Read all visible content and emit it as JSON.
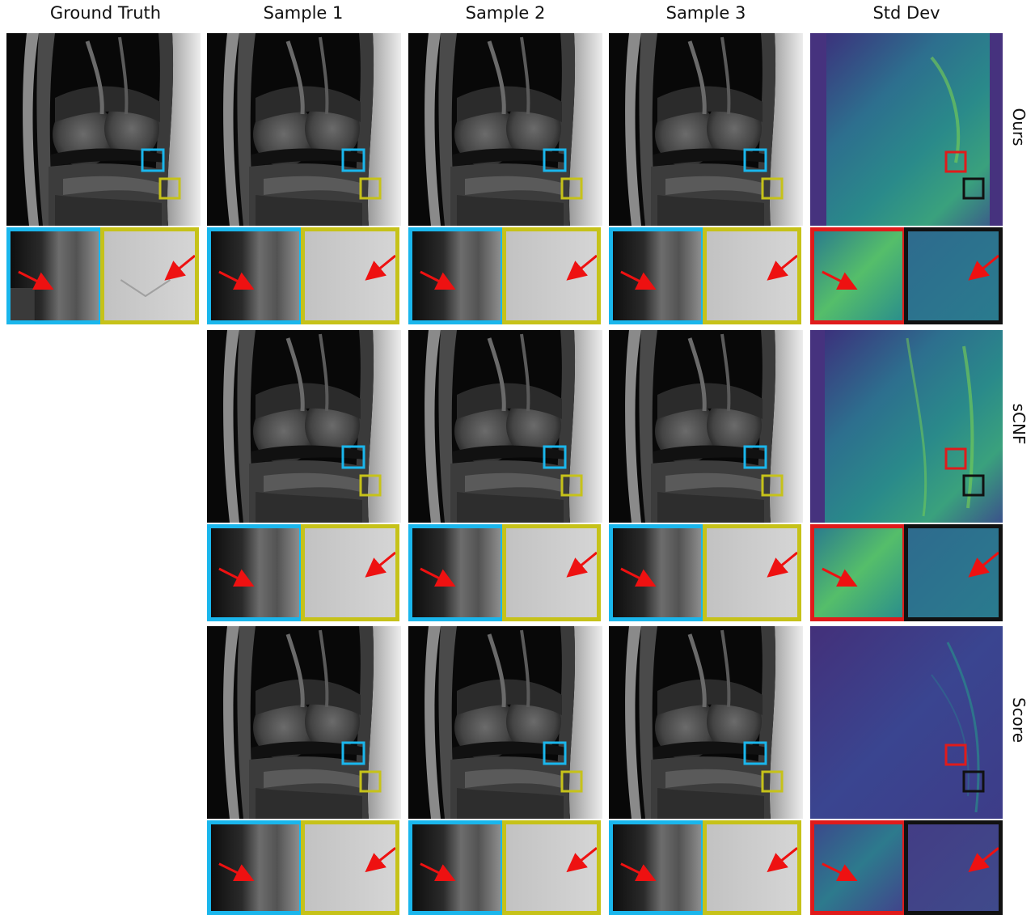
{
  "columns": [
    "Ground Truth",
    "Sample 1",
    "Sample 2",
    "Sample 3",
    "Std Dev"
  ],
  "rows": [
    "Ours",
    "sCNF",
    "Score"
  ],
  "colors": {
    "crop_blue": "#1ab6ec",
    "crop_yellow": "#c6c219",
    "crop_red": "#e01b1b",
    "crop_black": "#111111",
    "arrow": "#ee1111",
    "viridis_bg": "#46327e",
    "viridis_mid": "#2a8a8a",
    "viridis_hi": "#7ad151"
  }
}
